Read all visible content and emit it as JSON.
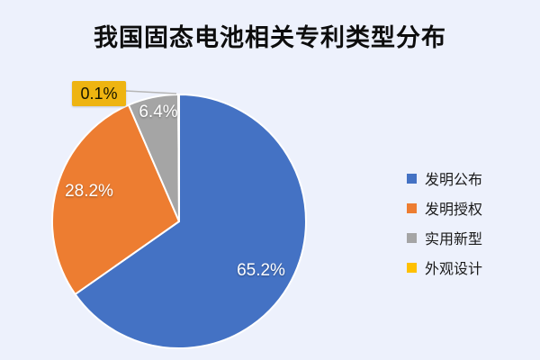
{
  "chart_data": {
    "type": "pie",
    "title": "我国固态电池相关专利类型分布",
    "direction": "clockwise",
    "start_angle_deg": 0,
    "legend_position": "right",
    "background_color": "#edf1fc",
    "slices": [
      {
        "label": "发明公布",
        "value": 65.2,
        "display": "65.2%",
        "color": "#4472c4"
      },
      {
        "label": "发明授权",
        "value": 28.2,
        "display": "28.2%",
        "color": "#ed7d31"
      },
      {
        "label": "实用新型",
        "value": 6.4,
        "display": "6.4%",
        "color": "#a5a5a5"
      },
      {
        "label": "外观设计",
        "value": 0.1,
        "display": "0.1%",
        "color": "#ffc000"
      }
    ],
    "callout": {
      "text": "0.1%",
      "bg": "#eeb411"
    }
  }
}
